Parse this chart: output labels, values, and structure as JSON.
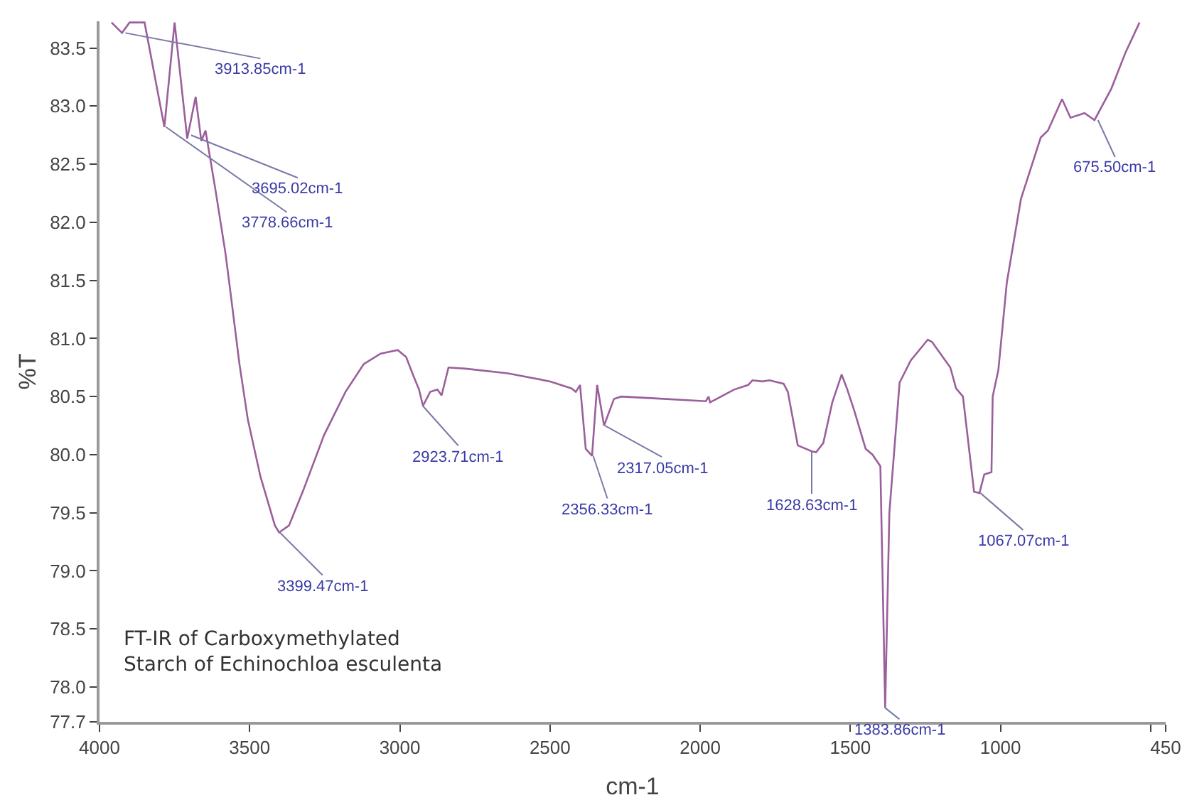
{
  "chart_data": {
    "type": "line",
    "xlabel": "cm-1",
    "ylabel": "%T",
    "xlim": [
      4000,
      450
    ],
    "ylim": [
      77.7,
      83.73
    ],
    "xticks": [
      4000,
      3500,
      3000,
      2500,
      2000,
      1500,
      1000,
      {
        "value": 500,
        "label": null
      },
      450
    ],
    "yticks": [
      77.7,
      {
        "value": 78,
        "label": "78.0"
      },
      78.5,
      {
        "value": 79,
        "label": "79.0"
      },
      79.5,
      {
        "value": 80,
        "label": "80.0"
      },
      80.5,
      {
        "value": 81,
        "label": "81.0"
      },
      81.5,
      {
        "value": 82,
        "label": "82.0"
      },
      82.5,
      {
        "value": 83,
        "label": "83.0"
      },
      83.5
    ],
    "grid": false,
    "marker": "none",
    "line_style": "solid",
    "series": [
      {
        "color": "#9b5f9b",
        "x": [
          3960,
          3925,
          3900,
          3850,
          3784,
          3750,
          3708,
          3680,
          3661,
          3647,
          3614,
          3581,
          3567,
          3534,
          3506,
          3464,
          3416,
          3402,
          3369,
          3322,
          3252,
          3181,
          3120,
          3064,
          3007,
          2979,
          2955,
          2936,
          2923,
          2899,
          2875,
          2861,
          2838,
          2781,
          2640,
          2499,
          2428,
          2414,
          2400,
          2381,
          2360,
          2343,
          2320,
          2287,
          2263,
          2122,
          1981,
          1972,
          1967,
          1887,
          1840,
          1826,
          1793,
          1769,
          1722,
          1708,
          1675,
          1630,
          1614,
          1590,
          1560,
          1529,
          1510,
          1487,
          1449,
          1426,
          1400,
          1384,
          1370,
          1336,
          1299,
          1242,
          1228,
          1167,
          1148,
          1125,
          1088,
          1070,
          1054,
          1030,
          1026,
          1007,
          979,
          932,
          866,
          842,
          795,
          767,
          720,
          687,
          631,
          584,
          537
        ],
        "values": [
          83.72,
          83.63,
          83.72,
          83.72,
          82.82,
          83.72,
          82.72,
          83.08,
          82.7,
          82.79,
          82.28,
          81.74,
          81.46,
          80.78,
          80.3,
          79.81,
          79.39,
          79.33,
          79.39,
          79.69,
          80.17,
          80.54,
          80.78,
          80.87,
          80.9,
          80.84,
          80.68,
          80.56,
          80.42,
          80.54,
          80.56,
          80.51,
          80.75,
          80.74,
          80.7,
          80.63,
          80.57,
          80.54,
          80.6,
          80.05,
          79.99,
          80.6,
          80.25,
          80.48,
          80.5,
          80.48,
          80.46,
          80.5,
          80.45,
          80.56,
          80.6,
          80.64,
          80.63,
          80.64,
          80.61,
          80.54,
          80.08,
          80.03,
          80.02,
          80.1,
          80.45,
          80.69,
          80.56,
          80.38,
          80.05,
          80.0,
          79.9,
          77.82,
          79.5,
          80.62,
          80.81,
          80.99,
          80.97,
          80.75,
          80.57,
          80.5,
          79.68,
          79.67,
          79.83,
          79.85,
          80.5,
          80.73,
          81.48,
          82.2,
          82.73,
          82.79,
          83.06,
          82.9,
          82.94,
          82.88,
          83.15,
          83.46,
          83.72
        ]
      }
    ],
    "annotations": [
      {
        "text": "3913.85cm-1",
        "x": 3913.85,
        "y": 83.63
      },
      {
        "text": "3778.66cm-1",
        "x": 3778.66,
        "y": 82.82
      },
      {
        "text": "3695.02cm-1",
        "x": 3695.02,
        "y": 82.75
      },
      {
        "text": "3399.47cm-1",
        "x": 3399.47,
        "y": 79.33
      },
      {
        "text": "2923.71cm-1",
        "x": 2923.71,
        "y": 80.42
      },
      {
        "text": "2356.33cm-1",
        "x": 2356.33,
        "y": 79.99
      },
      {
        "text": "2317.05cm-1",
        "x": 2317.05,
        "y": 80.25
      },
      {
        "text": "1628.63cm-1",
        "x": 1628.63,
        "y": 80.03
      },
      {
        "text": "1383.86cm-1",
        "x": 1383.86,
        "y": 77.82
      },
      {
        "text": "1067.07cm-1",
        "x": 1067.07,
        "y": 79.67
      },
      {
        "text": "675.50cm-1",
        "x": 675.5,
        "y": 82.88
      },
      "FT-IR of Carboxymethylated\nStarch of Echinochloa esculenta"
    ]
  }
}
